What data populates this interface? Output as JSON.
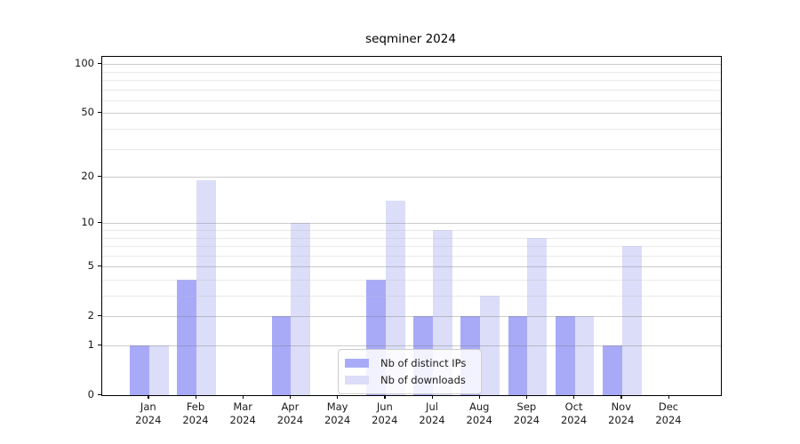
{
  "chart_data": {
    "type": "bar",
    "title": "seqminer 2024",
    "year_label": "2024",
    "categories": [
      "Jan",
      "Feb",
      "Mar",
      "Apr",
      "May",
      "Jun",
      "Jul",
      "Aug",
      "Sep",
      "Oct",
      "Nov",
      "Dec"
    ],
    "series": [
      {
        "name": "Nb of distinct IPs",
        "color": "#a8aaf8",
        "values": [
          1,
          4,
          0,
          2,
          0,
          4,
          2,
          2,
          2,
          2,
          1,
          0
        ]
      },
      {
        "name": "Nb of downloads",
        "color": "#dbddf9",
        "values": [
          1,
          19,
          0,
          10,
          0,
          14,
          9,
          3,
          8,
          2,
          7,
          0
        ]
      }
    ],
    "xlabel": "",
    "ylabel": "",
    "yscale": "log1p",
    "ylim": [
      0,
      111
    ],
    "yticks_major": [
      0,
      1,
      2,
      5,
      10,
      20,
      50,
      100
    ],
    "yticks_minor": [
      3,
      4,
      6,
      7,
      8,
      9,
      30,
      40,
      60,
      70,
      80,
      90
    ],
    "grid": "on",
    "legend_position": "lower-center",
    "colors": {
      "axis": "#000000",
      "grid_major": "#cccccc",
      "grid_minor": "#ebebeb"
    }
  }
}
